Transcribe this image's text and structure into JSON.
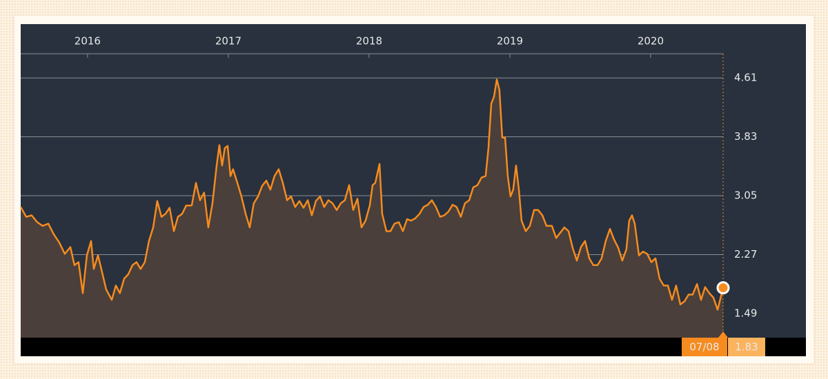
{
  "chart_data": {
    "type": "line",
    "series": [
      {
        "name": null,
        "color": "#f68b1f",
        "fill": "#4a3f3a",
        "values": [
          2.9,
          2.77,
          2.79,
          2.7,
          2.65,
          2.68,
          2.54,
          2.43,
          2.28,
          2.37,
          2.13,
          2.17,
          1.76,
          2.26,
          2.45,
          2.08,
          2.26,
          2.04,
          1.81,
          1.67,
          1.86,
          1.76,
          1.95,
          2.01,
          2.13,
          2.17,
          2.08,
          2.17,
          2.45,
          2.63,
          2.98,
          2.77,
          2.81,
          2.89,
          2.58,
          2.77,
          2.81,
          2.92,
          2.92,
          3.22,
          2.99,
          3.09,
          2.63,
          2.95,
          3.45,
          3.72,
          3.45,
          3.68,
          3.71,
          3.31,
          3.4,
          3.22,
          3.04,
          2.81,
          2.63,
          2.95,
          3.04,
          3.18,
          3.25,
          3.13,
          3.31,
          3.4,
          3.22,
          2.99,
          3.04,
          2.9,
          2.98,
          2.89,
          2.99,
          2.79,
          2.98,
          3.04,
          2.9,
          2.99,
          2.95,
          2.86,
          2.95,
          2.99,
          3.19,
          2.86,
          3.01,
          2.63,
          2.72,
          2.92,
          3.19,
          3.22,
          3.47,
          2.81,
          2.58,
          2.58,
          2.68,
          2.7,
          2.58,
          2.74,
          2.72,
          2.75,
          2.81,
          2.9,
          2.93,
          2.99,
          2.9,
          2.77,
          2.79,
          2.84,
          2.93,
          2.9,
          2.77,
          2.95,
          2.99,
          3.16,
          3.19,
          3.29,
          3.31,
          3.68,
          4.27,
          4.36,
          4.59,
          4.45,
          3.82,
          3.82,
          3.31,
          3.04,
          3.13,
          3.45,
          3.13,
          2.72,
          2.58,
          2.65,
          2.86,
          2.86,
          2.79,
          2.65,
          2.65,
          2.49,
          2.56,
          2.63,
          2.58,
          2.36,
          2.19,
          2.37,
          2.45,
          2.22,
          2.13,
          2.13,
          2.22,
          2.45,
          2.61,
          2.47,
          2.36,
          2.19,
          2.34,
          2.72,
          2.79,
          2.68,
          2.26,
          2.31,
          2.28,
          2.17,
          2.22,
          1.95,
          1.86,
          1.86,
          1.67,
          1.86,
          1.61,
          1.65,
          1.74,
          1.74,
          1.88,
          1.67,
          1.84,
          1.76,
          1.7,
          1.54,
          1.83
        ]
      }
    ],
    "x": [
      2015.525,
      2015.564,
      2015.603,
      2015.642,
      2015.681,
      2015.721,
      2015.76,
      2015.799,
      2015.838,
      2015.878,
      2015.907,
      2015.936,
      2015.966,
      2015.995,
      2016.025,
      2016.044,
      2016.074,
      2016.103,
      2016.132,
      2016.172,
      2016.201,
      2016.23,
      2016.26,
      2016.289,
      2016.319,
      2016.348,
      2016.377,
      2016.407,
      2016.436,
      2016.466,
      2016.495,
      2016.525,
      2016.554,
      2016.583,
      2016.613,
      2016.642,
      2016.672,
      2016.701,
      2016.74,
      2016.77,
      2016.799,
      2016.828,
      2016.858,
      2016.887,
      2016.917,
      2016.936,
      2016.956,
      2016.975,
      2016.995,
      2017.015,
      2017.034,
      2017.064,
      2017.093,
      2017.123,
      2017.152,
      2017.181,
      2017.211,
      2017.24,
      2017.27,
      2017.299,
      2017.328,
      2017.358,
      2017.387,
      2017.417,
      2017.446,
      2017.475,
      2017.505,
      2017.534,
      2017.564,
      2017.593,
      2017.622,
      2017.652,
      2017.681,
      2017.711,
      2017.74,
      2017.77,
      2017.799,
      2017.828,
      2017.858,
      2017.887,
      2017.917,
      2017.946,
      2017.975,
      2018.005,
      2018.025,
      2018.044,
      2018.074,
      2018.093,
      2018.123,
      2018.152,
      2018.181,
      2018.211,
      2018.24,
      2018.27,
      2018.299,
      2018.328,
      2018.358,
      2018.387,
      2018.417,
      2018.446,
      2018.475,
      2018.505,
      2018.534,
      2018.564,
      2018.593,
      2018.622,
      2018.652,
      2018.681,
      2018.711,
      2018.74,
      2018.77,
      2018.799,
      2018.828,
      2018.848,
      2018.868,
      2018.887,
      2018.907,
      2018.926,
      2018.946,
      2018.966,
      2018.985,
      2019.005,
      2019.024,
      2019.044,
      2019.064,
      2019.083,
      2019.113,
      2019.142,
      2019.172,
      2019.201,
      2019.231,
      2019.26,
      2019.299,
      2019.329,
      2019.358,
      2019.387,
      2019.417,
      2019.446,
      2019.476,
      2019.505,
      2019.534,
      2019.564,
      2019.593,
      2019.623,
      2019.652,
      2019.681,
      2019.711,
      2019.74,
      2019.77,
      2019.799,
      2019.828,
      2019.848,
      2019.868,
      2019.887,
      2019.917,
      2019.946,
      2019.976,
      2020.005,
      2020.034,
      2020.064,
      2020.093,
      2020.123,
      2020.152,
      2020.181,
      2020.211,
      2020.24,
      2020.27,
      2020.299,
      2020.329,
      2020.358,
      2020.387,
      2020.417,
      2020.446,
      2020.476,
      2020.515
    ],
    "xlim": [
      2015.525,
      2020.515
    ],
    "xticks": [
      2016,
      2017,
      2018,
      2019,
      2020
    ],
    "ylim": [
      1.17,
      4.93
    ],
    "yticks": [
      1.49,
      2.27,
      3.05,
      3.83,
      4.61
    ],
    "grid": true,
    "current_label": "07/08"
  }
}
